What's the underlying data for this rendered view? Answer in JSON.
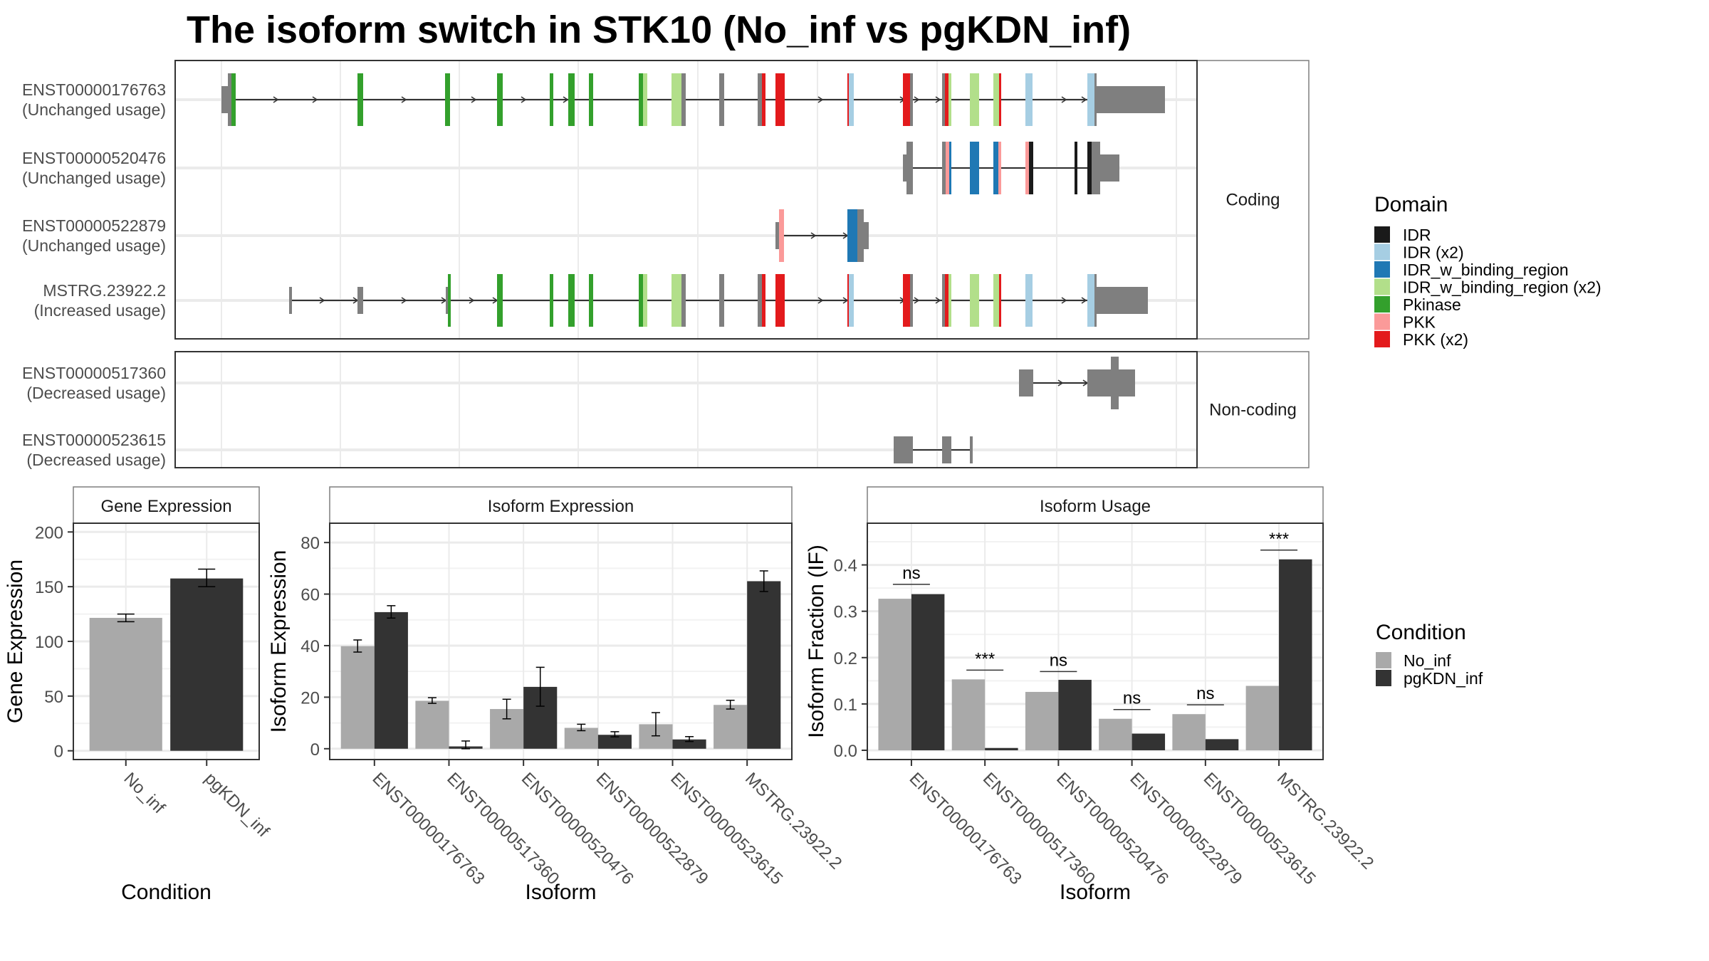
{
  "title": "The isoform switch in STK10 (No_inf vs pgKDN_inf)",
  "chart_data": [
    {
      "type": "gene-structure",
      "name": "transcript-structure",
      "facets": [
        {
          "label": "Coding",
          "transcripts": [
            {
              "id": "ENST00000176763",
              "usage": "(Unchanged usage)"
            },
            {
              "id": "ENST00000520476",
              "usage": "(Unchanged usage)"
            },
            {
              "id": "ENST00000522879",
              "usage": "(Unchanged usage)"
            },
            {
              "id": "MSTRG.23922.2",
              "usage": "(Increased usage)"
            }
          ]
        },
        {
          "label": "Non-coding",
          "transcripts": [
            {
              "id": "ENST00000517360",
              "usage": "(Decreased usage)"
            },
            {
              "id": "ENST00000523615",
              "usage": "(Decreased usage)"
            }
          ]
        }
      ],
      "legend": {
        "title": "Domain",
        "entries": [
          {
            "label": "IDR",
            "color": "#1a1a1a"
          },
          {
            "label": "IDR (x2)",
            "color": "#a6cee3"
          },
          {
            "label": "IDR_w_binding_region",
            "color": "#1f78b4"
          },
          {
            "label": "IDR_w_binding_region (x2)",
            "color": "#b2df8a"
          },
          {
            "label": "Pkinase",
            "color": "#33a02c"
          },
          {
            "label": "PKK",
            "color": "#fb9a99"
          },
          {
            "label": "PKK (x2)",
            "color": "#e31a1c"
          }
        ]
      },
      "grid": true
    },
    {
      "type": "bar",
      "name": "gene-expression",
      "title": "Gene Expression",
      "xlabel": "Condition",
      "ylabel": "Gene Expression",
      "categories": [
        "No_inf",
        "pgKDN_inf"
      ],
      "values": [
        121.5,
        157.5
      ],
      "errors": [
        [
          118,
          125
        ],
        [
          150,
          166
        ]
      ],
      "ylim": [
        0,
        200
      ],
      "yticks": [
        0,
        50,
        100,
        150,
        200
      ],
      "colors": [
        "#a9a9a9",
        "#333333"
      ]
    },
    {
      "type": "bar",
      "name": "isoform-expression",
      "title": "Isoform Expression",
      "xlabel": "Isoform",
      "ylabel": "Isoform Expression",
      "categories": [
        "ENST00000176763",
        "ENST00000517360",
        "ENST00000520476",
        "ENST00000522879",
        "ENST00000523615",
        "MSTRG.23922.2"
      ],
      "series": [
        {
          "name": "No_inf",
          "values": [
            39.8,
            18.6,
            15.4,
            8.1,
            9.5,
            17.0
          ],
          "errors": [
            [
              37.5,
              42.2
            ],
            [
              17.6,
              19.8
            ],
            [
              11.6,
              19.2
            ],
            [
              7.0,
              9.5
            ],
            [
              5.0,
              14.0
            ],
            [
              15.4,
              18.8
            ]
          ]
        },
        {
          "name": "pgKDN_inf",
          "values": [
            53.0,
            0.9,
            24.0,
            5.4,
            3.6,
            65.0
          ],
          "errors": [
            [
              50.7,
              55.5
            ],
            [
              0.0,
              3.0
            ],
            [
              16.5,
              31.6
            ],
            [
              4.6,
              6.6
            ],
            [
              2.8,
              4.7
            ],
            [
              61.0,
              69.0
            ]
          ]
        }
      ],
      "ylim": [
        0,
        83
      ],
      "yticks": [
        0,
        20,
        40,
        60,
        80
      ]
    },
    {
      "type": "bar",
      "name": "isoform-usage",
      "title": "Isoform Usage",
      "xlabel": "Isoform",
      "ylabel": "Isoform Fraction (IF)",
      "categories": [
        "ENST00000176763",
        "ENST00000517360",
        "ENST00000520476",
        "ENST00000522879",
        "ENST00000523615",
        "MSTRG.23922.2"
      ],
      "series": [
        {
          "name": "No_inf",
          "values": [
            0.327,
            0.153,
            0.126,
            0.068,
            0.078,
            0.139
          ]
        },
        {
          "name": "pgKDN_inf",
          "values": [
            0.337,
            0.005,
            0.152,
            0.036,
            0.024,
            0.412
          ]
        }
      ],
      "significance": [
        {
          "label": "ns",
          "y": 0.358
        },
        {
          "label": "***",
          "y": 0.173
        },
        {
          "label": "ns",
          "y": 0.17
        },
        {
          "label": "ns",
          "y": 0.088
        },
        {
          "label": "ns",
          "y": 0.098
        },
        {
          "label": "***",
          "y": 0.432
        }
      ],
      "ylim": [
        -0.01,
        0.49
      ],
      "yticks": [
        0.0,
        0.1,
        0.2,
        0.3,
        0.4
      ],
      "ytick_labels": [
        "0.0",
        "0.1",
        "0.2",
        "0.3",
        "0.4"
      ]
    }
  ],
  "condition_legend": {
    "title": "Condition",
    "entries": [
      {
        "label": "No_inf",
        "color": "#a9a9a9"
      },
      {
        "label": "pgKDN_inf",
        "color": "#333333"
      }
    ]
  }
}
